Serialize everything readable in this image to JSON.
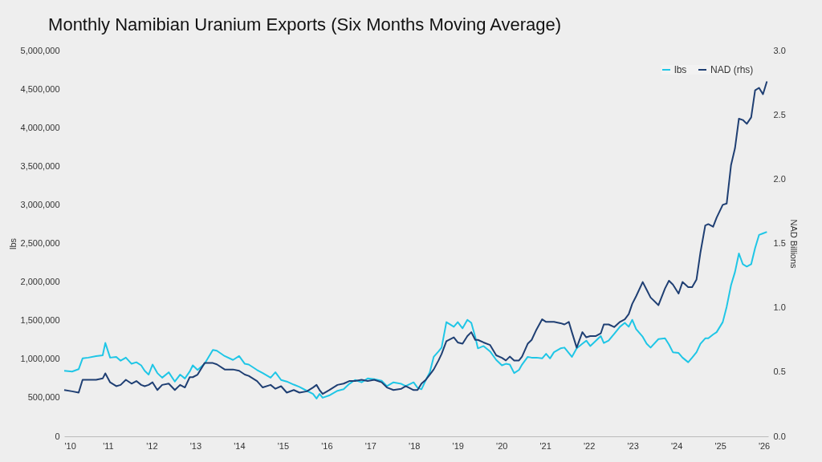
{
  "chart_data": {
    "type": "line",
    "title": "Monthly Namibian Uranium Exports (Six Months Moving Average)",
    "ylabel": "lbs",
    "y2label": "NAD Billions",
    "x": [
      2010.0,
      2010.18,
      2010.33,
      2010.42,
      2010.55,
      2010.73,
      2010.88,
      2010.94,
      2011.05,
      2011.19,
      2011.29,
      2011.41,
      2011.54,
      2011.65,
      2011.76,
      2011.84,
      2011.93,
      2012.02,
      2012.13,
      2012.24,
      2012.39,
      2012.53,
      2012.65,
      2012.76,
      2012.87,
      2012.94,
      2013.05,
      2013.21,
      2013.4,
      2013.49,
      2013.67,
      2013.86,
      2014.0,
      2014.13,
      2014.22,
      2014.41,
      2014.54,
      2014.72,
      2014.83,
      2014.96,
      2015.09,
      2015.25,
      2015.38,
      2015.55,
      2015.69,
      2015.77,
      2015.84,
      2015.91,
      2016.06,
      2016.25,
      2016.39,
      2016.52,
      2016.65,
      2016.8,
      2016.94,
      2017.09,
      2017.26,
      2017.38,
      2017.53,
      2017.71,
      2017.81,
      2017.99,
      2018.08,
      2018.17,
      2018.27,
      2018.36,
      2018.45,
      2018.56,
      2018.63,
      2018.74,
      2018.91,
      2019.0,
      2019.11,
      2019.22,
      2019.31,
      2019.4,
      2019.46,
      2019.59,
      2019.74,
      2019.88,
      2020.01,
      2020.1,
      2020.19,
      2020.29,
      2020.4,
      2020.47,
      2020.6,
      2020.69,
      2020.8,
      2020.93,
      2021.02,
      2021.11,
      2021.2,
      2021.35,
      2021.44,
      2021.54,
      2021.61,
      2021.72,
      2021.85,
      2021.94,
      2022.03,
      2022.16,
      2022.27,
      2022.34,
      2022.45,
      2022.58,
      2022.71,
      2022.82,
      2022.91,
      2022.99,
      2023.08,
      2023.23,
      2023.32,
      2023.41,
      2023.59,
      2023.74,
      2023.83,
      2023.92,
      2024.05,
      2024.14,
      2024.27,
      2024.36,
      2024.46,
      2024.55,
      2024.66,
      2024.73,
      2024.84,
      2024.92,
      2025.06,
      2025.15,
      2025.25,
      2025.34,
      2025.43,
      2025.52,
      2025.61,
      2025.71,
      2025.8,
      2025.89,
      2025.98,
      2026.07
    ],
    "series": [
      {
        "name": "lbs",
        "color": "#1fc6e6",
        "values": [
          850000,
          840000,
          870000,
          1010000,
          1020000,
          1040000,
          1050000,
          1210000,
          1020000,
          1030000,
          980000,
          1020000,
          940000,
          960000,
          920000,
          850000,
          800000,
          930000,
          820000,
          760000,
          830000,
          710000,
          800000,
          750000,
          840000,
          920000,
          860000,
          940000,
          1120000,
          1110000,
          1040000,
          990000,
          1040000,
          940000,
          930000,
          860000,
          820000,
          760000,
          830000,
          730000,
          710000,
          670000,
          640000,
          590000,
          550000,
          490000,
          550000,
          500000,
          530000,
          590000,
          610000,
          680000,
          730000,
          700000,
          750000,
          740000,
          720000,
          650000,
          700000,
          680000,
          650000,
          700000,
          630000,
          610000,
          730000,
          830000,
          1030000,
          1100000,
          1150000,
          1480000,
          1420000,
          1480000,
          1400000,
          1510000,
          1470000,
          1290000,
          1140000,
          1170000,
          1100000,
          990000,
          920000,
          940000,
          930000,
          820000,
          860000,
          930000,
          1030000,
          1020000,
          1020000,
          1010000,
          1070000,
          1010000,
          1090000,
          1140000,
          1150000,
          1080000,
          1030000,
          1140000,
          1200000,
          1240000,
          1170000,
          1240000,
          1300000,
          1210000,
          1240000,
          1330000,
          1420000,
          1470000,
          1420000,
          1510000,
          1390000,
          1290000,
          1200000,
          1150000,
          1260000,
          1270000,
          1190000,
          1090000,
          1080000,
          1020000,
          960000,
          1020000,
          1090000,
          1200000,
          1270000,
          1270000,
          1320000,
          1350000,
          1480000,
          1680000,
          1960000,
          2130000,
          2370000,
          2230000,
          2200000,
          2230000,
          2440000,
          2610000,
          2630000,
          2650000
        ]
      },
      {
        "name": "NAD (rhs)",
        "color": "#1f3f73",
        "axis": "y2",
        "values": [
          0.36,
          0.35,
          0.34,
          0.44,
          0.44,
          0.44,
          0.45,
          0.49,
          0.42,
          0.39,
          0.4,
          0.44,
          0.41,
          0.43,
          0.4,
          0.39,
          0.4,
          0.42,
          0.36,
          0.4,
          0.41,
          0.36,
          0.4,
          0.38,
          0.46,
          0.46,
          0.48,
          0.57,
          0.57,
          0.56,
          0.52,
          0.52,
          0.51,
          0.48,
          0.47,
          0.43,
          0.38,
          0.4,
          0.37,
          0.39,
          0.34,
          0.36,
          0.34,
          0.35,
          0.38,
          0.4,
          0.36,
          0.33,
          0.36,
          0.4,
          0.41,
          0.43,
          0.43,
          0.44,
          0.43,
          0.44,
          0.42,
          0.38,
          0.36,
          0.37,
          0.39,
          0.36,
          0.36,
          0.41,
          0.44,
          0.48,
          0.52,
          0.59,
          0.64,
          0.74,
          0.77,
          0.73,
          0.72,
          0.78,
          0.81,
          0.75,
          0.75,
          0.73,
          0.71,
          0.63,
          0.61,
          0.59,
          0.62,
          0.59,
          0.59,
          0.62,
          0.72,
          0.75,
          0.83,
          0.91,
          0.89,
          0.89,
          0.89,
          0.88,
          0.87,
          0.89,
          0.81,
          0.69,
          0.81,
          0.77,
          0.78,
          0.78,
          0.8,
          0.87,
          0.87,
          0.85,
          0.89,
          0.91,
          0.95,
          1.03,
          1.09,
          1.2,
          1.14,
          1.08,
          1.02,
          1.15,
          1.21,
          1.18,
          1.11,
          1.2,
          1.16,
          1.16,
          1.22,
          1.43,
          1.64,
          1.65,
          1.63,
          1.7,
          1.8,
          1.81,
          2.11,
          2.24,
          2.47,
          2.46,
          2.43,
          2.48,
          2.69,
          2.71,
          2.66,
          2.76
        ]
      }
    ],
    "xlim": [
      2010,
      2026.1
    ],
    "xticks": [
      {
        "value": 2010,
        "label": "'10"
      },
      {
        "value": 2011,
        "label": "'11"
      },
      {
        "value": 2012,
        "label": "'12"
      },
      {
        "value": 2013,
        "label": "'13"
      },
      {
        "value": 2014,
        "label": "'14"
      },
      {
        "value": 2015,
        "label": "'15"
      },
      {
        "value": 2016,
        "label": "'16"
      },
      {
        "value": 2017,
        "label": "'17"
      },
      {
        "value": 2018,
        "label": "'18"
      },
      {
        "value": 2019,
        "label": "'19"
      },
      {
        "value": 2020,
        "label": "'20"
      },
      {
        "value": 2021,
        "label": "'21"
      },
      {
        "value": 2022,
        "label": "'22"
      },
      {
        "value": 2023,
        "label": "'23"
      },
      {
        "value": 2024,
        "label": "'24"
      },
      {
        "value": 2025,
        "label": "'25"
      },
      {
        "value": 2026,
        "label": "'26"
      }
    ],
    "ylim": [
      0,
      5000000
    ],
    "yticks": [
      0,
      {
        "value": 500000,
        "label": "500,000"
      },
      {
        "value": 1000000,
        "label": "1,000,000"
      },
      {
        "value": 1500000,
        "label": "1,500,000"
      },
      {
        "value": 2000000,
        "label": "2,000,000"
      },
      {
        "value": 2500000,
        "label": "2,500,000"
      },
      {
        "value": 3000000,
        "label": "3,000,000"
      },
      {
        "value": 3500000,
        "label": "3,500,000"
      },
      {
        "value": 4000000,
        "label": "4,000,000"
      },
      {
        "value": 4500000,
        "label": "4,500,000"
      },
      {
        "value": 5000000,
        "label": "5,000,000"
      }
    ],
    "y2lim": [
      0,
      3
    ],
    "y2ticks": [
      {
        "value": 0,
        "label": "0.0"
      },
      {
        "value": 0.5,
        "label": "0.5"
      },
      {
        "value": 1,
        "label": "1.0"
      },
      {
        "value": 1.5,
        "label": "1.5"
      },
      {
        "value": 2,
        "label": "2.0"
      },
      {
        "value": 2.5,
        "label": "2.5"
      },
      {
        "value": 3,
        "label": "3.0"
      }
    ],
    "legend": "top right",
    "grid": false,
    "marker": "none",
    "line_style": "solid"
  }
}
